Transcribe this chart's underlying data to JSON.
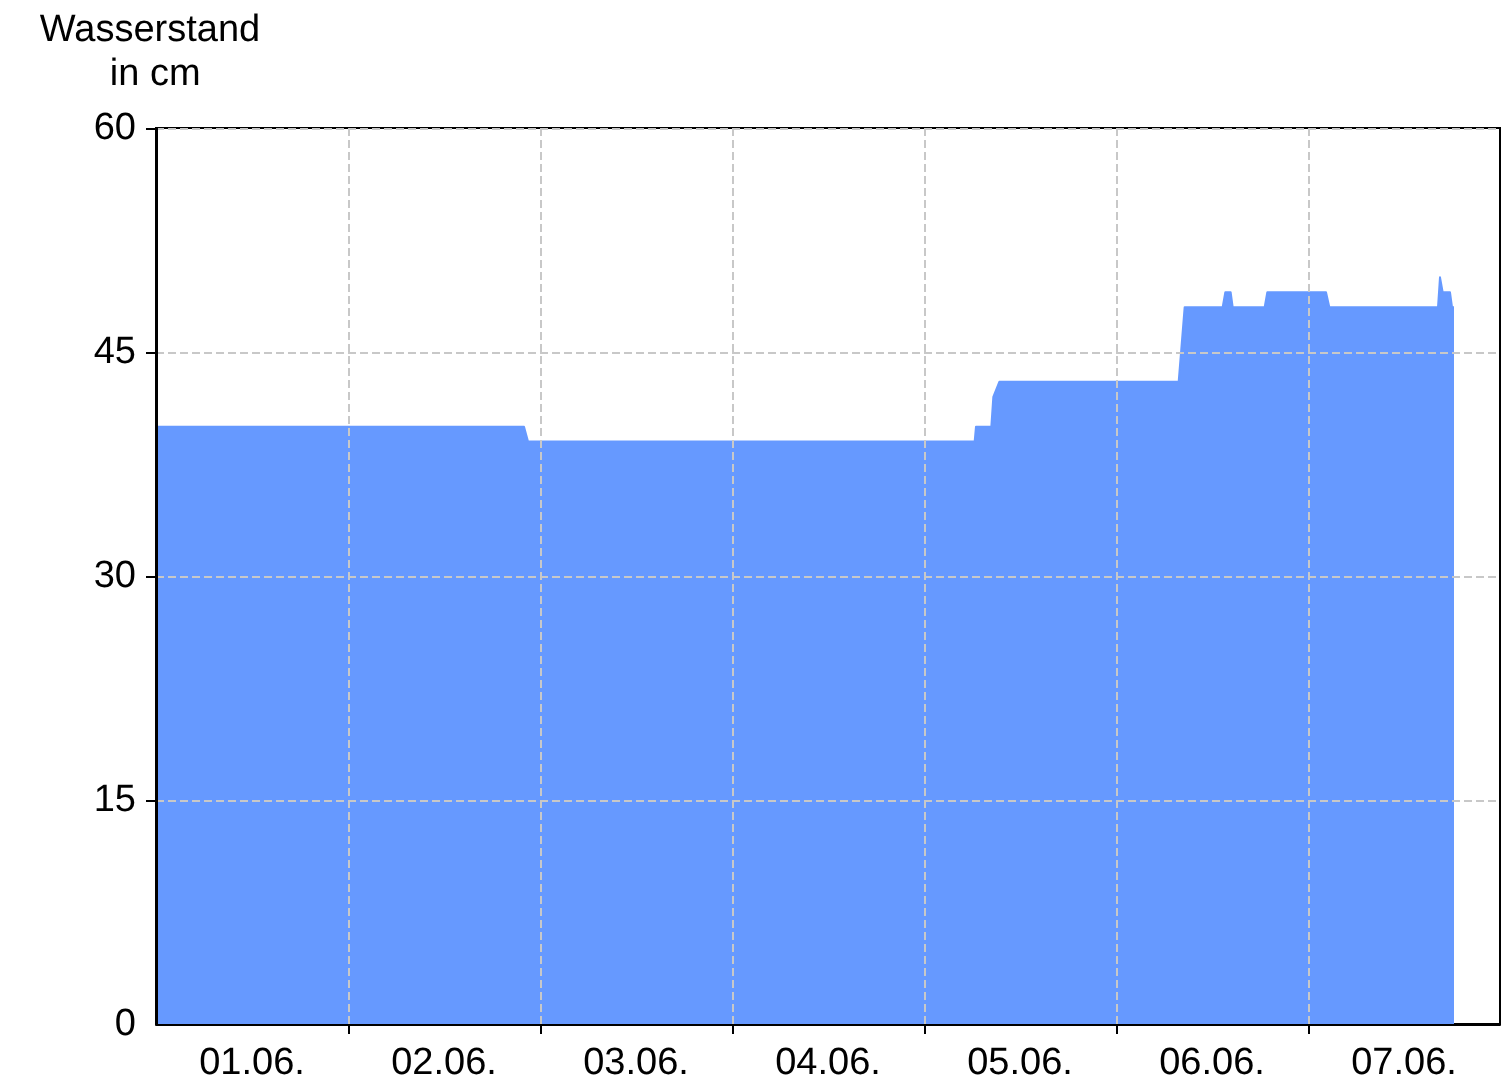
{
  "chart_data": {
    "type": "area",
    "ylabel": "Wasserstand in cm",
    "x": [
      "--06-01T00:00",
      "--06-02T22:00",
      "--06-02T22:30",
      "--06-05T06:20",
      "--06-05T06:30",
      "--06-05T08:25",
      "--06-05T08:40",
      "--06-05T09:25",
      "--06-06T07:50",
      "--06-06T08:35",
      "--06-06T13:20",
      "--06-06T13:40",
      "--06-06T14:20",
      "--06-06T14:35",
      "--06-06T18:35",
      "--06-06T18:55",
      "--06-07T02:15",
      "--06-07T02:40",
      "--06-07T16:15",
      "--06-07T16:30",
      "--06-07T16:50",
      "--06-07T17:45",
      "--06-07T18:00",
      "--06-07T18:15"
    ],
    "series": [
      {
        "color": "#6699ff",
        "values": [
          40,
          40,
          39,
          39,
          40,
          40,
          42,
          43,
          43,
          48,
          48,
          49,
          49,
          48,
          48,
          49,
          49,
          48,
          48,
          50,
          49,
          49,
          48,
          48
        ]
      }
    ],
    "xlim": [
      "--06-01T00:00",
      "--06-08T00:00"
    ],
    "xticks": [
      {
        "value": "--06-02T00:00",
        "label": null
      },
      {
        "value": "--06-03T00:00",
        "label": null
      },
      {
        "value": "--06-04T00:00",
        "label": null
      },
      {
        "value": "--06-05T00:00",
        "label": null
      },
      {
        "value": "--06-06T00:00",
        "label": null
      },
      {
        "value": "--06-07T00:00",
        "label": null
      },
      {
        "value": "--06-01T12:00",
        "label": "01.06."
      },
      {
        "value": "--06-02T12:00",
        "label": "02.06."
      },
      {
        "value": "--06-03T12:00",
        "label": "03.06."
      },
      {
        "value": "--06-04T12:00",
        "label": "04.06."
      },
      {
        "value": "--06-05T12:00",
        "label": "05.06."
      },
      {
        "value": "--06-06T12:00",
        "label": "06.06."
      },
      {
        "value": "--06-07T12:00",
        "label": "07.06."
      }
    ],
    "ylim": [
      0,
      60
    ],
    "yticks": [
      0,
      15,
      30,
      45,
      60
    ],
    "grid": true,
    "marker": "none"
  }
}
